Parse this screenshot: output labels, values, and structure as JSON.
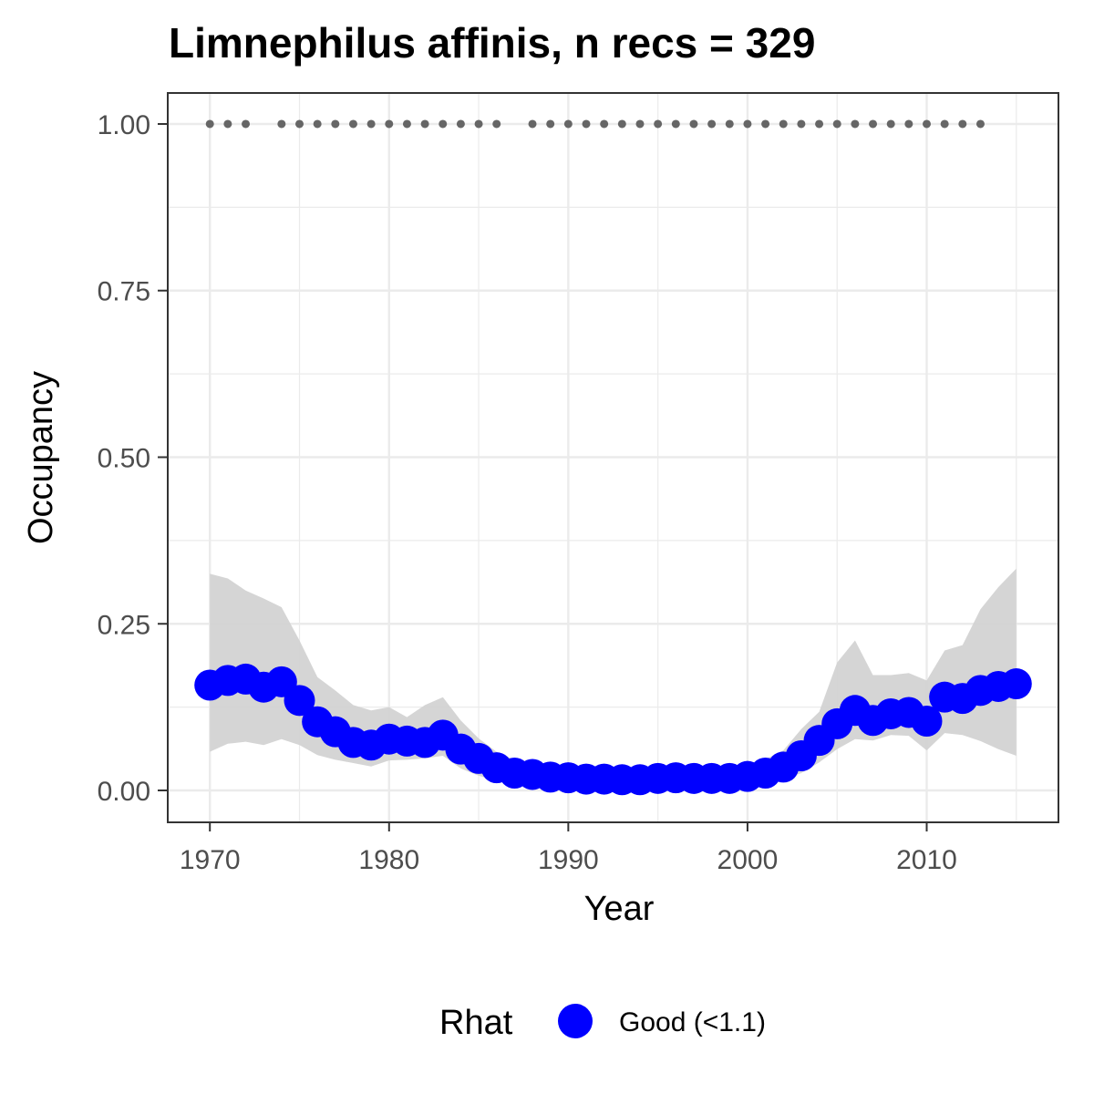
{
  "chart_data": {
    "type": "line",
    "title": "Limnephilus affinis, n recs = 329",
    "xlabel": "Year",
    "ylabel": "Occupancy",
    "xlim": [
      1967.8,
      1017.0
    ],
    "ylim": [
      -0.0465,
      1.0465
    ],
    "x_ticks": [
      1970,
      1980,
      1990,
      2000,
      2010
    ],
    "x_tick_labels": [
      "1970",
      "1980",
      "1990",
      "2000",
      "2010"
    ],
    "y_ticks": [
      0,
      0.25,
      0.5,
      0.75,
      1.0
    ],
    "y_tick_labels": [
      "0.00",
      "0.25",
      "0.50",
      "0.75",
      "1.00"
    ],
    "grid": true,
    "legend_position": "bottom",
    "legend": {
      "title": "Rhat",
      "entries": [
        {
          "label": "Good (<1.1)",
          "color": "#0000ff"
        }
      ]
    },
    "colors": {
      "series": "#0000ff",
      "ribbon": "#d3d3d3",
      "record_dots": "#666666",
      "grid": "#ebebeb",
      "panel_border": "#333333"
    },
    "series": [
      {
        "name": "Good (<1.1)",
        "x": [
          1970,
          1971,
          1972,
          1973,
          1974,
          1975,
          1976,
          1977,
          1978,
          1979,
          1980,
          1981,
          1982,
          1983,
          1984,
          1985,
          1986,
          1987,
          1988,
          1989,
          1990,
          1991,
          1992,
          1993,
          1994,
          1995,
          1996,
          1997,
          1998,
          1999,
          2000,
          2001,
          2002,
          2003,
          2004,
          2005,
          2006,
          2007,
          2008,
          2009,
          2010,
          2011,
          2012,
          2013,
          2014,
          2015
        ],
        "y": [
          0.158,
          0.165,
          0.167,
          0.155,
          0.163,
          0.135,
          0.103,
          0.088,
          0.072,
          0.068,
          0.077,
          0.074,
          0.072,
          0.083,
          0.062,
          0.048,
          0.034,
          0.026,
          0.024,
          0.02,
          0.019,
          0.017,
          0.017,
          0.016,
          0.016,
          0.018,
          0.019,
          0.018,
          0.018,
          0.018,
          0.021,
          0.026,
          0.035,
          0.052,
          0.075,
          0.1,
          0.12,
          0.105,
          0.115,
          0.117,
          0.104,
          0.14,
          0.138,
          0.15,
          0.156,
          0.16
        ],
        "lower": [
          0.058,
          0.07,
          0.073,
          0.068,
          0.077,
          0.068,
          0.053,
          0.046,
          0.041,
          0.036,
          0.045,
          0.046,
          0.048,
          0.052,
          0.033,
          0.022,
          0.014,
          0.009,
          0.008,
          0.006,
          0.006,
          0.005,
          0.005,
          0.005,
          0.005,
          0.006,
          0.006,
          0.006,
          0.006,
          0.006,
          0.007,
          0.01,
          0.016,
          0.026,
          0.042,
          0.062,
          0.077,
          0.075,
          0.083,
          0.082,
          0.06,
          0.086,
          0.083,
          0.074,
          0.062,
          0.052
        ],
        "upper": [
          0.325,
          0.318,
          0.3,
          0.288,
          0.275,
          0.225,
          0.17,
          0.15,
          0.128,
          0.12,
          0.125,
          0.11,
          0.128,
          0.14,
          0.105,
          0.078,
          0.058,
          0.046,
          0.042,
          0.038,
          0.036,
          0.034,
          0.034,
          0.033,
          0.033,
          0.035,
          0.038,
          0.036,
          0.036,
          0.036,
          0.04,
          0.047,
          0.06,
          0.092,
          0.118,
          0.192,
          0.225,
          0.173,
          0.173,
          0.176,
          0.165,
          0.21,
          0.218,
          0.272,
          0.305,
          0.333
        ]
      }
    ],
    "record_years": [
      1970,
      1971,
      1972,
      1974,
      1975,
      1976,
      1977,
      1978,
      1979,
      1980,
      1981,
      1982,
      1983,
      1984,
      1985,
      1986,
      1988,
      1989,
      1990,
      1991,
      1992,
      1993,
      1994,
      1995,
      1996,
      1997,
      1998,
      1999,
      2000,
      2001,
      2002,
      2003,
      2004,
      2005,
      2006,
      2007,
      2008,
      2009,
      2010,
      2011,
      2012,
      2013
    ],
    "record_value": 1.0
  }
}
